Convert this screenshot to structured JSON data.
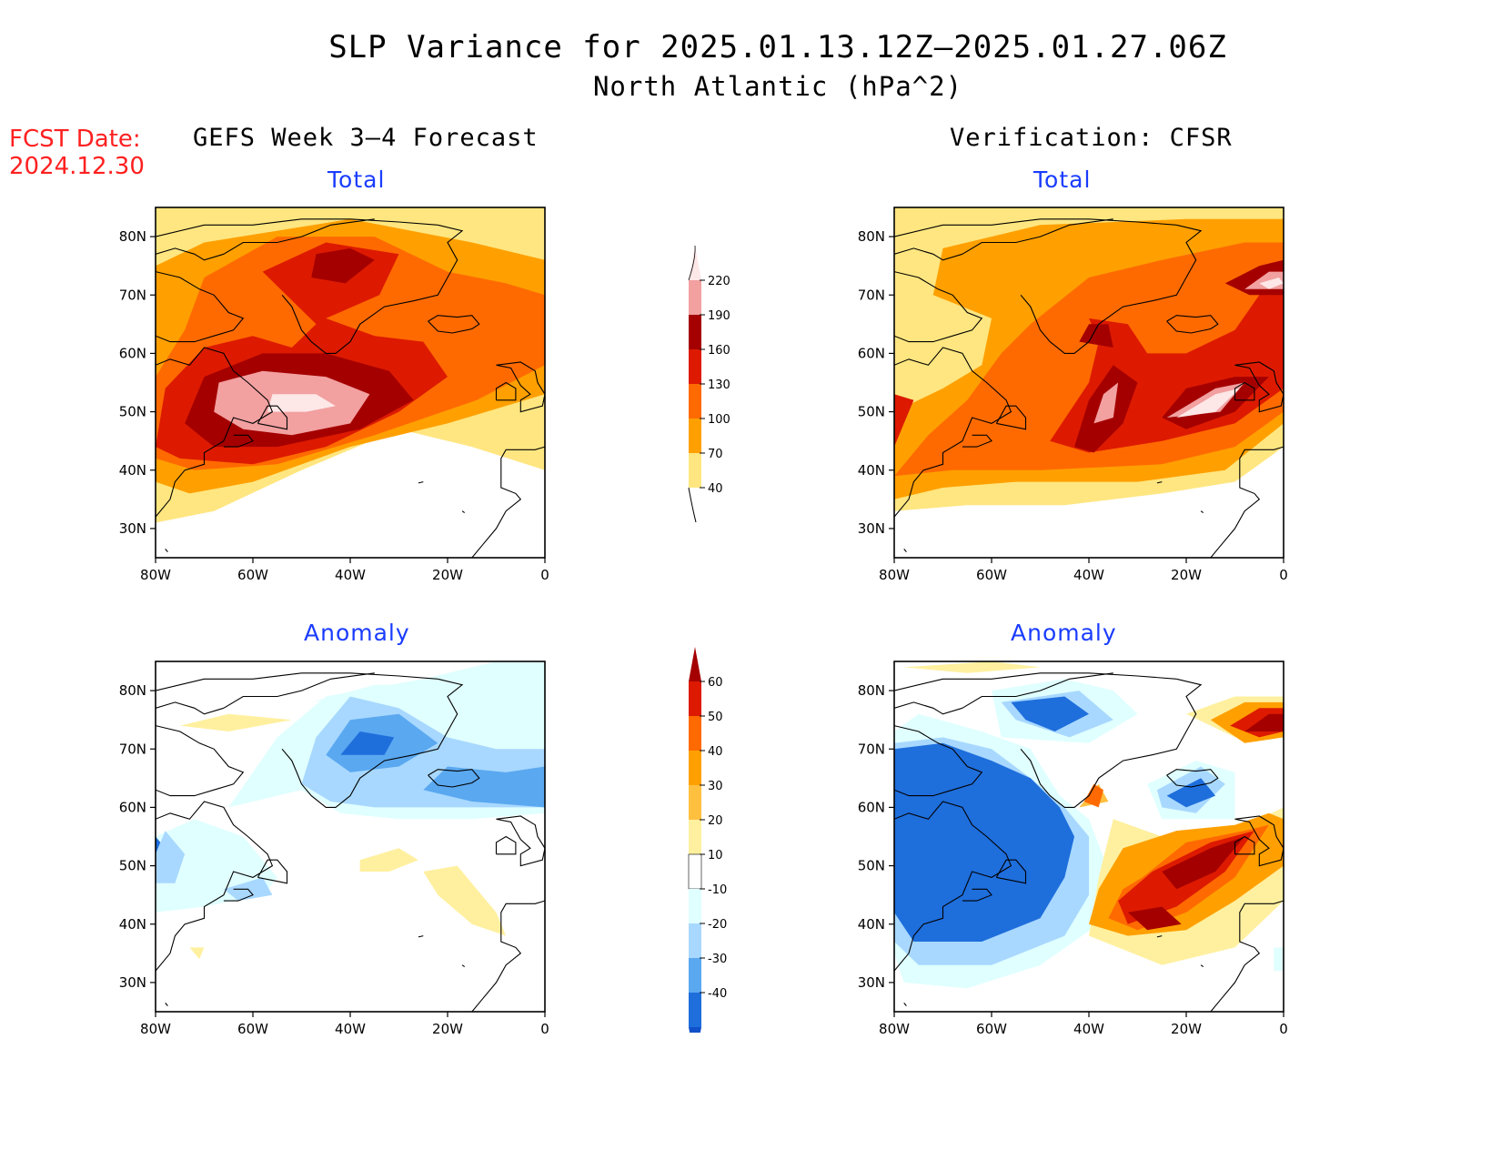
{
  "title": {
    "line1": "SLP Variance for 2025.01.13.12Z–2025.01.27.06Z",
    "line2": "North Atlantic (hPa^2)"
  },
  "forecast_date": {
    "label": "FCST Date:",
    "value": "2024.12.30"
  },
  "columns": {
    "left": "GEFS Week 3–4 Forecast",
    "right": "Verification: CFSR"
  },
  "panels": [
    {
      "id": "forecast-total",
      "title": "Total",
      "field": "total",
      "source": "GEFS"
    },
    {
      "id": "verification-total",
      "title": "Total",
      "field": "total",
      "source": "CFSR"
    },
    {
      "id": "forecast-anomaly",
      "title": "Anomaly",
      "field": "anomaly",
      "source": "GEFS"
    },
    {
      "id": "verification-anomaly",
      "title": "Anomaly",
      "field": "anomaly",
      "source": "CFSR"
    }
  ],
  "axes": {
    "lon_labels": [
      "80W",
      "60W",
      "40W",
      "20W",
      "0"
    ],
    "lat_labels": [
      "80N",
      "70N",
      "60N",
      "50N",
      "40N",
      "30N"
    ],
    "lon_range": [
      -80,
      0
    ],
    "lat_range": [
      25,
      85
    ]
  },
  "colorbars": {
    "total": {
      "labels": [
        "220",
        "190",
        "160",
        "130",
        "100",
        "70",
        "40"
      ],
      "colors": [
        "#fde7e7",
        "#f2a0a0",
        "#a50000",
        "#dd1a00",
        "#ff6a00",
        "#ffa000",
        "#ffe680"
      ]
    },
    "anomaly": {
      "labels": [
        "60",
        "50",
        "40",
        "30",
        "20",
        "10",
        "-10",
        "-20",
        "-30",
        "-40"
      ],
      "colors": [
        "#a50000",
        "#dd1a00",
        "#ff6a00",
        "#ffa000",
        "#ffc040",
        "#fff0a0",
        "#ffffff",
        "#e0ffff",
        "#a8d8ff",
        "#5aa8f0",
        "#1e6edc",
        "#1050c8"
      ]
    }
  }
}
